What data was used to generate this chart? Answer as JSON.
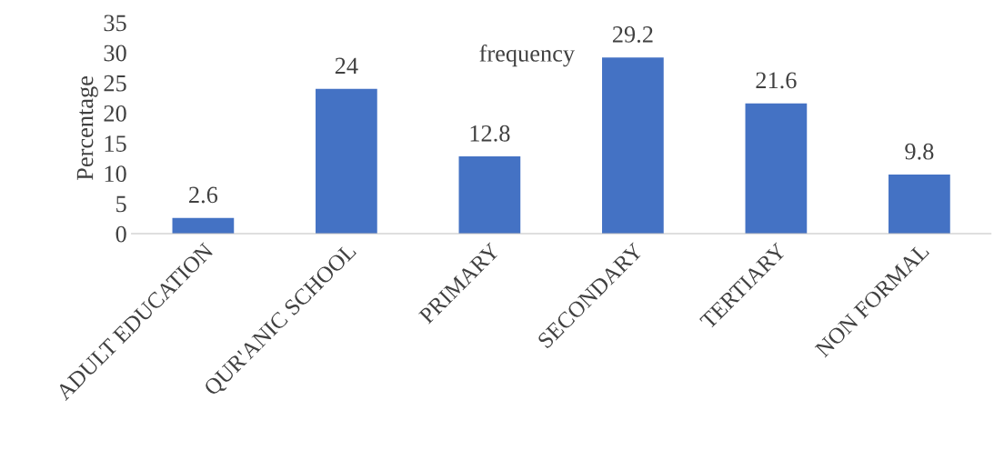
{
  "chart_data": {
    "type": "bar",
    "title": "frequency",
    "ylabel": "Percentage",
    "categories": [
      "ADULT EDUCATION",
      "QUR'ANIC SCHOOL",
      "PRIMARY",
      "SECONDARY",
      "TERTIARY",
      "NON FORMAL"
    ],
    "values": [
      2.6,
      24,
      12.8,
      29.2,
      21.6,
      9.8
    ],
    "color": "#4472c4",
    "ylim": [
      0,
      35
    ],
    "yticks": [
      0,
      5,
      10,
      15,
      20,
      25,
      30,
      35
    ],
    "grid": false,
    "data_labels": true
  }
}
